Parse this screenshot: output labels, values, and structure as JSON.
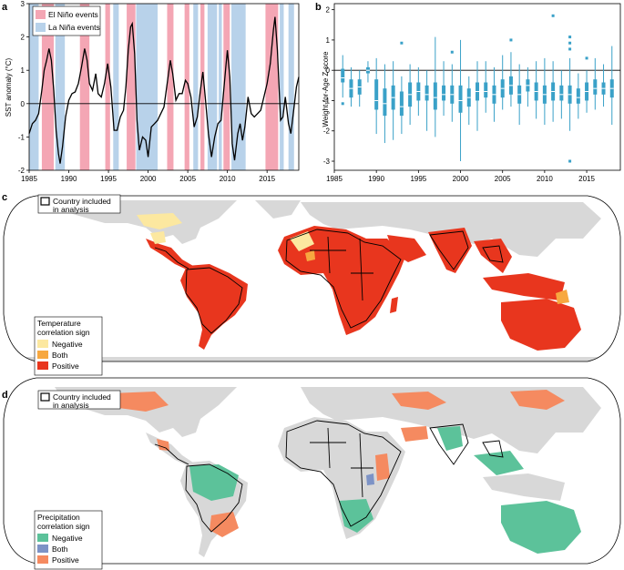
{
  "panels": {
    "a": "a",
    "b": "b",
    "c": "c",
    "d": "d"
  },
  "chart_data": [
    {
      "type": "line",
      "panel": "a",
      "ylabel": "SST anomaly (°C)",
      "xlim": [
        1985,
        2019
      ],
      "ylim": [
        -2,
        3
      ],
      "x_ticks": [
        1985,
        1990,
        1995,
        2000,
        2005,
        2010,
        2015
      ],
      "y_ticks": [
        -2,
        -1,
        0,
        1,
        2,
        3
      ],
      "legend": [
        {
          "label": "El Niño events",
          "color": "#f4a6b4"
        },
        {
          "label": "La Niña events",
          "color": "#b8d2ea"
        }
      ],
      "el_nino_periods": [
        [
          1986.6,
          1988.1
        ],
        [
          1991.4,
          1992.6
        ],
        [
          1994.6,
          1995.2
        ],
        [
          1997.3,
          1998.4
        ],
        [
          2002.4,
          2003.2
        ],
        [
          2004.6,
          2005.2
        ],
        [
          2006.6,
          2007.1
        ],
        [
          2009.5,
          2010.3
        ],
        [
          2014.8,
          2016.4
        ]
      ],
      "la_nina_periods": [
        [
          1984.9,
          1986.2
        ],
        [
          1988.3,
          1989.5
        ],
        [
          1995.6,
          1996.3
        ],
        [
          1998.5,
          2001.2
        ],
        [
          2005.7,
          2006.3
        ],
        [
          2007.5,
          2008.7
        ],
        [
          2008.9,
          2009.3
        ],
        [
          2010.5,
          2012.3
        ],
        [
          2016.6,
          2017.1
        ],
        [
          2017.7,
          2018.4
        ]
      ],
      "series": [
        {
          "name": "",
          "color": "#000000",
          "points": [
            [
              1985.0,
              -0.9
            ],
            [
              1985.4,
              -0.6
            ],
            [
              1985.8,
              -0.5
            ],
            [
              1986.2,
              -0.3
            ],
            [
              1986.6,
              0.4
            ],
            [
              1986.9,
              1.0
            ],
            [
              1987.2,
              1.3
            ],
            [
              1987.5,
              1.65
            ],
            [
              1987.8,
              1.3
            ],
            [
              1988.1,
              0.4
            ],
            [
              1988.4,
              -0.8
            ],
            [
              1988.7,
              -1.5
            ],
            [
              1988.9,
              -1.8
            ],
            [
              1989.2,
              -1.3
            ],
            [
              1989.6,
              -0.4
            ],
            [
              1990.0,
              0.1
            ],
            [
              1990.4,
              0.3
            ],
            [
              1990.8,
              0.35
            ],
            [
              1991.2,
              0.6
            ],
            [
              1991.6,
              1.1
            ],
            [
              1992.0,
              1.65
            ],
            [
              1992.3,
              1.3
            ],
            [
              1992.6,
              0.6
            ],
            [
              1993.0,
              0.4
            ],
            [
              1993.4,
              0.9
            ],
            [
              1993.7,
              0.3
            ],
            [
              1994.1,
              0.2
            ],
            [
              1994.5,
              0.6
            ],
            [
              1994.9,
              1.2
            ],
            [
              1995.3,
              0.5
            ],
            [
              1995.7,
              -0.8
            ],
            [
              1996.1,
              -0.8
            ],
            [
              1996.5,
              -0.4
            ],
            [
              1996.9,
              -0.2
            ],
            [
              1997.2,
              0.5
            ],
            [
              1997.5,
              1.6
            ],
            [
              1997.8,
              2.3
            ],
            [
              1998.0,
              2.4
            ],
            [
              1998.3,
              1.5
            ],
            [
              1998.6,
              -0.5
            ],
            [
              1998.9,
              -1.4
            ],
            [
              1999.3,
              -1.0
            ],
            [
              1999.7,
              -1.1
            ],
            [
              2000.0,
              -1.6
            ],
            [
              2000.4,
              -0.7
            ],
            [
              2000.8,
              -0.6
            ],
            [
              2001.2,
              -0.5
            ],
            [
              2001.6,
              -0.3
            ],
            [
              2002.0,
              -0.1
            ],
            [
              2002.4,
              0.6
            ],
            [
              2002.8,
              1.3
            ],
            [
              2003.1,
              0.9
            ],
            [
              2003.5,
              0.1
            ],
            [
              2003.9,
              0.3
            ],
            [
              2004.3,
              0.3
            ],
            [
              2004.7,
              0.7
            ],
            [
              2005.0,
              0.6
            ],
            [
              2005.4,
              0.2
            ],
            [
              2005.8,
              -0.7
            ],
            [
              2006.2,
              -0.4
            ],
            [
              2006.6,
              0.4
            ],
            [
              2006.9,
              0.95
            ],
            [
              2007.2,
              0.2
            ],
            [
              2007.6,
              -0.9
            ],
            [
              2008.0,
              -1.6
            ],
            [
              2008.4,
              -1.0
            ],
            [
              2008.8,
              -0.6
            ],
            [
              2009.2,
              -0.5
            ],
            [
              2009.5,
              0.3
            ],
            [
              2009.8,
              1.1
            ],
            [
              2010.0,
              1.6
            ],
            [
              2010.3,
              0.8
            ],
            [
              2010.6,
              -1.2
            ],
            [
              2010.9,
              -1.7
            ],
            [
              2011.3,
              -0.9
            ],
            [
              2011.6,
              -0.6
            ],
            [
              2011.9,
              -1.1
            ],
            [
              2012.2,
              -0.7
            ],
            [
              2012.6,
              0.2
            ],
            [
              2013.0,
              -0.3
            ],
            [
              2013.4,
              -0.4
            ],
            [
              2013.8,
              -0.3
            ],
            [
              2014.2,
              -0.2
            ],
            [
              2014.6,
              0.2
            ],
            [
              2015.0,
              0.6
            ],
            [
              2015.4,
              1.2
            ],
            [
              2015.8,
              2.2
            ],
            [
              2016.0,
              2.6
            ],
            [
              2016.3,
              1.6
            ],
            [
              2016.7,
              -0.5
            ],
            [
              2017.0,
              -0.4
            ],
            [
              2017.3,
              0.2
            ],
            [
              2017.7,
              -0.6
            ],
            [
              2018.0,
              -0.9
            ],
            [
              2018.4,
              -0.1
            ],
            [
              2018.7,
              0.5
            ],
            [
              2019.0,
              0.8
            ]
          ]
        }
      ]
    },
    {
      "type": "box",
      "panel": "b",
      "ylabel": "Weight-for-Age Z-score",
      "xlim": [
        1985,
        2019
      ],
      "ylim": [
        -3.3,
        2.2
      ],
      "x_ticks": [
        1985,
        1990,
        1995,
        2000,
        2005,
        2010,
        2015
      ],
      "y_ticks": [
        -3,
        -2,
        -1,
        0,
        1,
        2
      ],
      "color": "#3aa1c8",
      "boxes": [
        {
          "x": 1986,
          "min": -0.9,
          "q1": -0.4,
          "median": -0.25,
          "q3": 0.05,
          "max": 0.5,
          "outliers": [
            -1.1
          ]
        },
        {
          "x": 1987,
          "min": -1.2,
          "q1": -0.9,
          "median": -0.6,
          "q3": -0.3,
          "max": 0.1,
          "outliers": []
        },
        {
          "x": 1988,
          "min": -1.2,
          "q1": -0.8,
          "median": -0.55,
          "q3": -0.3,
          "max": 0.0,
          "outliers": []
        },
        {
          "x": 1989,
          "min": -0.4,
          "q1": -0.1,
          "median": 0.0,
          "q3": 0.1,
          "max": 0.3,
          "outliers": []
        },
        {
          "x": 1990,
          "min": -2.1,
          "q1": -1.3,
          "median": -1.0,
          "q3": -0.3,
          "max": 0.4,
          "outliers": []
        },
        {
          "x": 1991,
          "min": -2.4,
          "q1": -1.5,
          "median": -1.1,
          "q3": -0.6,
          "max": 0.2,
          "outliers": []
        },
        {
          "x": 1992,
          "min": -2.3,
          "q1": -1.3,
          "median": -0.9,
          "q3": -0.5,
          "max": 0.3,
          "outliers": []
        },
        {
          "x": 1993,
          "min": -2.1,
          "q1": -1.5,
          "median": -1.2,
          "q3": -0.7,
          "max": -0.2,
          "outliers": [
            0.9
          ]
        },
        {
          "x": 1994,
          "min": -1.8,
          "q1": -1.2,
          "median": -0.8,
          "q3": -0.4,
          "max": 0.2,
          "outliers": []
        },
        {
          "x": 1995,
          "min": -1.5,
          "q1": -1.0,
          "median": -0.7,
          "q3": -0.4,
          "max": 0.1,
          "outliers": []
        },
        {
          "x": 1996,
          "min": -2.0,
          "q1": -1.0,
          "median": -0.8,
          "q3": -0.5,
          "max": 0.0,
          "outliers": []
        },
        {
          "x": 1997,
          "min": -2.2,
          "q1": -1.3,
          "median": -0.9,
          "q3": -0.4,
          "max": 1.1,
          "outliers": []
        },
        {
          "x": 1998,
          "min": -1.5,
          "q1": -1.0,
          "median": -0.8,
          "q3": -0.5,
          "max": 0.3,
          "outliers": []
        },
        {
          "x": 1999,
          "min": -1.7,
          "q1": -1.1,
          "median": -0.8,
          "q3": -0.5,
          "max": 0.2,
          "outliers": [
            0.6
          ]
        },
        {
          "x": 2000,
          "min": -3.0,
          "q1": -1.4,
          "median": -1.0,
          "q3": -0.5,
          "max": 1.0,
          "outliers": []
        },
        {
          "x": 2001,
          "min": -1.8,
          "q1": -1.2,
          "median": -0.9,
          "q3": -0.6,
          "max": -0.2,
          "outliers": []
        },
        {
          "x": 2002,
          "min": -2.0,
          "q1": -1.0,
          "median": -0.7,
          "q3": -0.4,
          "max": 0.3,
          "outliers": []
        },
        {
          "x": 2003,
          "min": -1.4,
          "q1": -0.9,
          "median": -0.7,
          "q3": -0.4,
          "max": 0.3,
          "outliers": []
        },
        {
          "x": 2004,
          "min": -1.7,
          "q1": -1.1,
          "median": -0.8,
          "q3": -0.5,
          "max": 0.1,
          "outliers": []
        },
        {
          "x": 2005,
          "min": -1.3,
          "q1": -0.9,
          "median": -0.6,
          "q3": -0.3,
          "max": 0.5,
          "outliers": []
        },
        {
          "x": 2006,
          "min": -1.2,
          "q1": -0.8,
          "median": -0.5,
          "q3": -0.2,
          "max": 0.6,
          "outliers": [
            1.0
          ]
        },
        {
          "x": 2007,
          "min": -1.8,
          "q1": -1.1,
          "median": -0.8,
          "q3": -0.5,
          "max": 0.2,
          "outliers": []
        },
        {
          "x": 2008,
          "min": -1.2,
          "q1": -0.7,
          "median": -0.5,
          "q3": -0.3,
          "max": 0.1,
          "outliers": []
        },
        {
          "x": 2009,
          "min": -1.6,
          "q1": -1.0,
          "median": -0.7,
          "q3": -0.4,
          "max": 0.3,
          "outliers": []
        },
        {
          "x": 2010,
          "min": -1.8,
          "q1": -1.1,
          "median": -0.8,
          "q3": -0.5,
          "max": 0.4,
          "outliers": []
        },
        {
          "x": 2011,
          "min": -1.7,
          "q1": -1.0,
          "median": -0.7,
          "q3": -0.4,
          "max": 0.3,
          "outliers": [
            1.8
          ]
        },
        {
          "x": 2012,
          "min": -1.6,
          "q1": -1.0,
          "median": -0.8,
          "q3": -0.5,
          "max": 0.0,
          "outliers": []
        },
        {
          "x": 2013,
          "min": -2.0,
          "q1": -1.1,
          "median": -0.8,
          "q3": -0.5,
          "max": 0.4,
          "outliers": [
            1.1,
            0.9,
            0.7,
            -3.0
          ]
        },
        {
          "x": 2014,
          "min": -1.6,
          "q1": -1.1,
          "median": -0.9,
          "q3": -0.6,
          "max": -0.1,
          "outliers": []
        },
        {
          "x": 2015,
          "min": -1.4,
          "q1": -1.0,
          "median": -0.7,
          "q3": -0.4,
          "max": 0.0,
          "outliers": [
            0.4
          ]
        },
        {
          "x": 2016,
          "min": -1.3,
          "q1": -0.8,
          "median": -0.6,
          "q3": -0.3,
          "max": 0.4,
          "outliers": []
        },
        {
          "x": 2017,
          "min": -1.2,
          "q1": -0.8,
          "median": -0.6,
          "q3": -0.4,
          "max": 0.2,
          "outliers": []
        },
        {
          "x": 2018,
          "min": -1.8,
          "q1": -0.9,
          "median": -0.6,
          "q3": -0.3,
          "max": 0.8,
          "outliers": []
        }
      ]
    }
  ],
  "map_c": {
    "country_legend": [
      "Country included",
      "in analysis"
    ],
    "legend_title": [
      "Temperature",
      "correlation sign"
    ],
    "legend_items": [
      {
        "label": "Negative",
        "color": "#fce8a0"
      },
      {
        "label": "Both",
        "color": "#f7a840"
      },
      {
        "label": "Positive",
        "color": "#e8361e"
      }
    ]
  },
  "map_d": {
    "country_legend": [
      "Country included",
      "in analysis"
    ],
    "legend_title": [
      "Precipitation",
      "correlation sign"
    ],
    "legend_items": [
      {
        "label": "Negative",
        "color": "#5cc29a"
      },
      {
        "label": "Both",
        "color": "#7d93c6"
      },
      {
        "label": "Positive",
        "color": "#f58a60"
      }
    ]
  },
  "colors": {
    "land": "#d8d8d8",
    "ocean": "#ffffff",
    "border": "#000000"
  }
}
